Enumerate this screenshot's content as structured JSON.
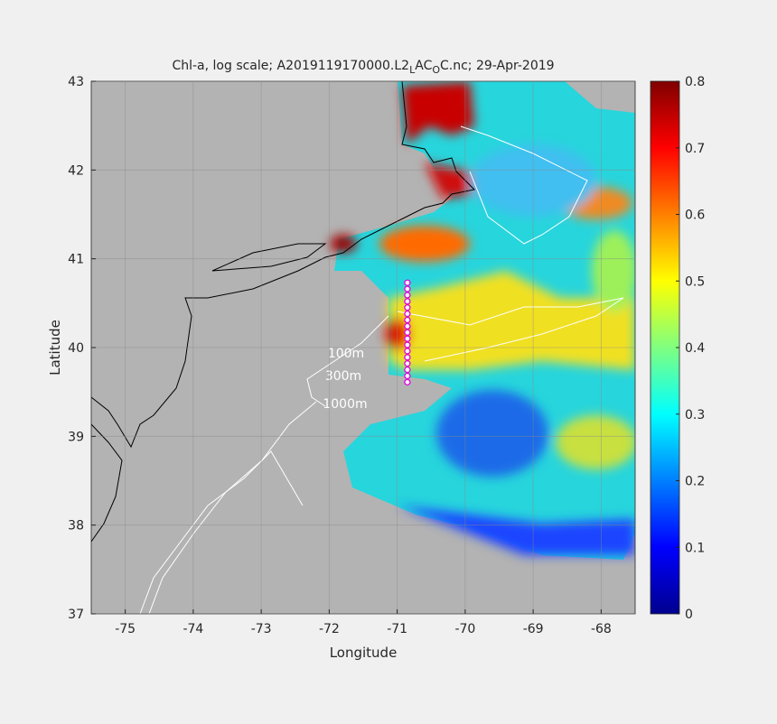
{
  "chart_data": {
    "type": "map",
    "title_parts": [
      {
        "text": "Chl-a, log scale; A2019119170000.L2",
        "sub": false
      },
      {
        "text": "L",
        "sub": true
      },
      {
        "text": "AC",
        "sub": false
      },
      {
        "text": "O",
        "sub": true
      },
      {
        "text": "C.nc; 29-Apr-2019",
        "sub": false
      }
    ],
    "xlabel": "Longitude",
    "ylabel": "Latitude",
    "xlim": [
      -75.5,
      -67.5
    ],
    "xticks": [
      -75,
      -74,
      -73,
      -72,
      -71,
      -70,
      -69,
      -68
    ],
    "ylim": [
      37,
      43
    ],
    "yticks": [
      37,
      38,
      39,
      40,
      41,
      42,
      43
    ],
    "grid": true,
    "colorbar": {
      "colormap": "jet",
      "clim": [
        0,
        0.8
      ],
      "ticks": [
        0,
        0.1,
        0.2,
        0.3,
        0.4,
        0.5,
        0.6,
        0.7,
        0.8
      ]
    },
    "contour_labels": [
      "100m",
      "300m",
      "1000m"
    ],
    "stations": {
      "color": "#e000e0",
      "lon": [
        -70.85,
        -70.85,
        -70.85,
        -70.85,
        -70.85,
        -70.85,
        -70.85,
        -70.85,
        -70.85,
        -70.85,
        -70.85,
        -70.85,
        -70.85,
        -70.85,
        -70.85,
        -70.85,
        -70.85
      ],
      "lat": [
        40.73,
        40.66,
        40.59,
        40.52,
        40.45,
        40.38,
        40.31,
        40.24,
        40.17,
        40.1,
        40.03,
        39.96,
        39.89,
        39.82,
        39.75,
        39.68,
        39.61
      ]
    }
  }
}
